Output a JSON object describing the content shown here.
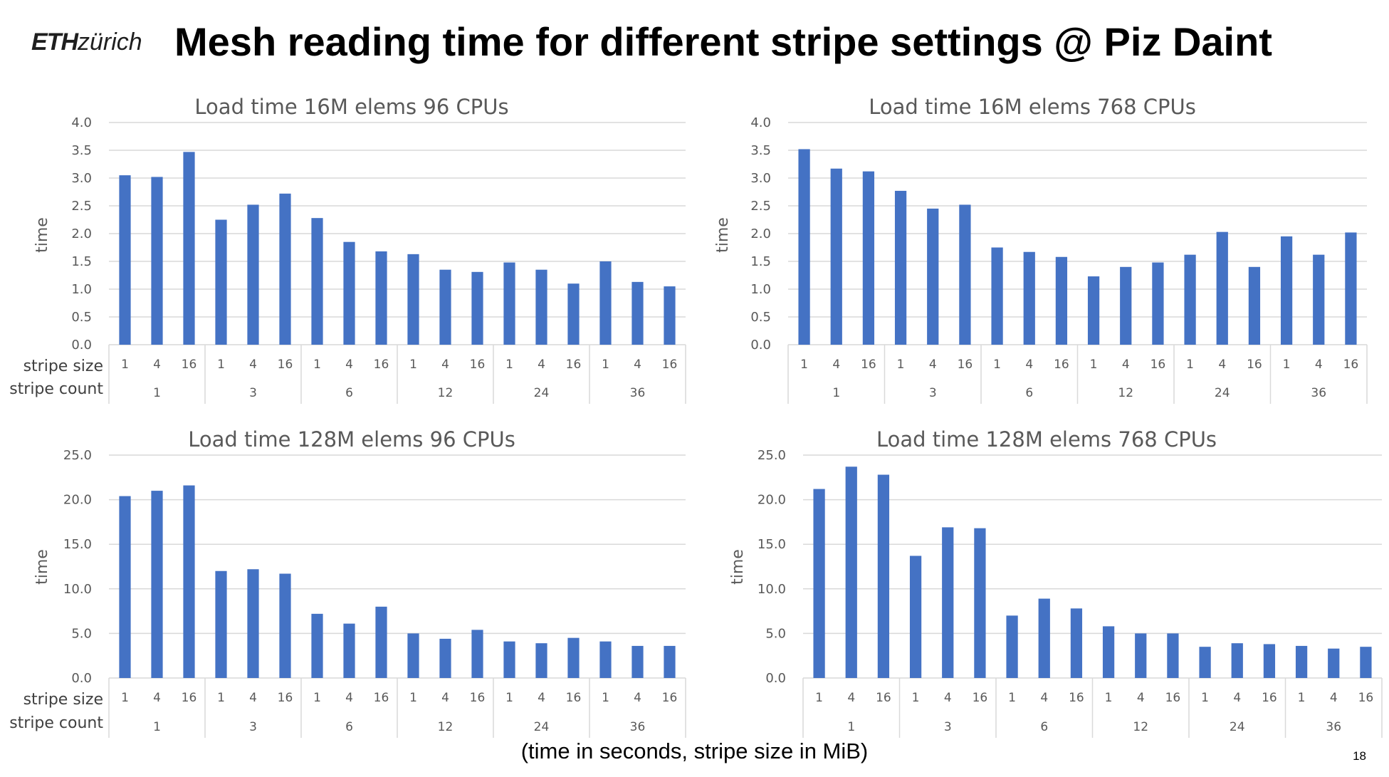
{
  "header": {
    "logo_bold": "ETH",
    "logo_light": "zürich",
    "title": "Mesh reading time for different stripe settings @ Piz Daint"
  },
  "footer": {
    "note": "(time in seconds, stripe size in MiB)",
    "page_number": "18"
  },
  "colors": {
    "bar": "#4472C4",
    "grid": "#D9D9D9",
    "text": "#595959"
  },
  "chart_data": [
    {
      "type": "bar",
      "title": "Load time 16M elems 96 CPUs",
      "ylabel": "time",
      "ylim": [
        0,
        4
      ],
      "yticks": [
        "0.0",
        "0.5",
        "1.0",
        "1.5",
        "2.0",
        "2.5",
        "3.0",
        "3.5",
        "4.0"
      ],
      "row_labels": [
        "stripe size",
        "stripe count"
      ],
      "groups": [
        {
          "count": "1",
          "sizes": [
            "1",
            "4",
            "16"
          ],
          "values": [
            3.05,
            3.02,
            3.47
          ]
        },
        {
          "count": "3",
          "sizes": [
            "1",
            "4",
            "16"
          ],
          "values": [
            2.25,
            2.52,
            2.72
          ]
        },
        {
          "count": "6",
          "sizes": [
            "1",
            "4",
            "16"
          ],
          "values": [
            2.28,
            1.85,
            1.68
          ]
        },
        {
          "count": "12",
          "sizes": [
            "1",
            "4",
            "16"
          ],
          "values": [
            1.63,
            1.35,
            1.31
          ]
        },
        {
          "count": "24",
          "sizes": [
            "1",
            "4",
            "16"
          ],
          "values": [
            1.48,
            1.35,
            1.1
          ]
        },
        {
          "count": "36",
          "sizes": [
            "1",
            "4",
            "16"
          ],
          "values": [
            1.5,
            1.13,
            1.05
          ]
        }
      ],
      "grid": true
    },
    {
      "type": "bar",
      "title": "Load time 16M elems 768 CPUs",
      "ylabel": "time",
      "ylim": [
        0,
        4
      ],
      "yticks": [
        "0.0",
        "0.5",
        "1.0",
        "1.5",
        "2.0",
        "2.5",
        "3.0",
        "3.5",
        "4.0"
      ],
      "row_labels": [],
      "groups": [
        {
          "count": "1",
          "sizes": [
            "1",
            "4",
            "16"
          ],
          "values": [
            3.52,
            3.17,
            3.12
          ]
        },
        {
          "count": "3",
          "sizes": [
            "1",
            "4",
            "16"
          ],
          "values": [
            2.77,
            2.45,
            2.52
          ]
        },
        {
          "count": "6",
          "sizes": [
            "1",
            "4",
            "16"
          ],
          "values": [
            1.75,
            1.67,
            1.58
          ]
        },
        {
          "count": "12",
          "sizes": [
            "1",
            "4",
            "16"
          ],
          "values": [
            1.23,
            1.4,
            1.48
          ]
        },
        {
          "count": "24",
          "sizes": [
            "1",
            "4",
            "16"
          ],
          "values": [
            1.62,
            2.03,
            1.4
          ]
        },
        {
          "count": "36",
          "sizes": [
            "1",
            "4",
            "16"
          ],
          "values": [
            1.95,
            1.62,
            2.02
          ]
        }
      ],
      "grid": true
    },
    {
      "type": "bar",
      "title": "Load time 128M elems 96 CPUs",
      "ylabel": "time",
      "ylim": [
        0,
        25
      ],
      "yticks": [
        "0.0",
        "5.0",
        "10.0",
        "15.0",
        "20.0",
        "25.0"
      ],
      "row_labels": [
        "stripe size",
        "stripe count"
      ],
      "groups": [
        {
          "count": "1",
          "sizes": [
            "1",
            "4",
            "16"
          ],
          "values": [
            20.4,
            21.0,
            21.6
          ]
        },
        {
          "count": "3",
          "sizes": [
            "1",
            "4",
            "16"
          ],
          "values": [
            12.0,
            12.2,
            11.7
          ]
        },
        {
          "count": "6",
          "sizes": [
            "1",
            "4",
            "16"
          ],
          "values": [
            7.2,
            6.1,
            8.0
          ]
        },
        {
          "count": "12",
          "sizes": [
            "1",
            "4",
            "16"
          ],
          "values": [
            5.0,
            4.4,
            5.4
          ]
        },
        {
          "count": "24",
          "sizes": [
            "1",
            "4",
            "16"
          ],
          "values": [
            4.1,
            3.9,
            4.5
          ]
        },
        {
          "count": "36",
          "sizes": [
            "1",
            "4",
            "16"
          ],
          "values": [
            4.1,
            3.6,
            3.6
          ]
        }
      ],
      "grid": true
    },
    {
      "type": "bar",
      "title": "Load time 128M elems 768 CPUs",
      "ylabel": "time",
      "ylim": [
        0,
        25
      ],
      "yticks": [
        "0.0",
        "5.0",
        "10.0",
        "15.0",
        "20.0",
        "25.0"
      ],
      "row_labels": [],
      "groups": [
        {
          "count": "1",
          "sizes": [
            "1",
            "4",
            "16"
          ],
          "values": [
            21.2,
            23.7,
            22.8
          ]
        },
        {
          "count": "3",
          "sizes": [
            "1",
            "4",
            "16"
          ],
          "values": [
            13.7,
            16.9,
            16.8
          ]
        },
        {
          "count": "6",
          "sizes": [
            "1",
            "4",
            "16"
          ],
          "values": [
            7.0,
            8.9,
            7.8
          ]
        },
        {
          "count": "12",
          "sizes": [
            "1",
            "4",
            "16"
          ],
          "values": [
            5.8,
            5.0,
            5.0
          ]
        },
        {
          "count": "24",
          "sizes": [
            "1",
            "4",
            "16"
          ],
          "values": [
            3.5,
            3.9,
            3.8
          ]
        },
        {
          "count": "36",
          "sizes": [
            "1",
            "4",
            "16"
          ],
          "values": [
            3.6,
            3.3,
            3.5
          ]
        }
      ],
      "grid": true
    }
  ]
}
